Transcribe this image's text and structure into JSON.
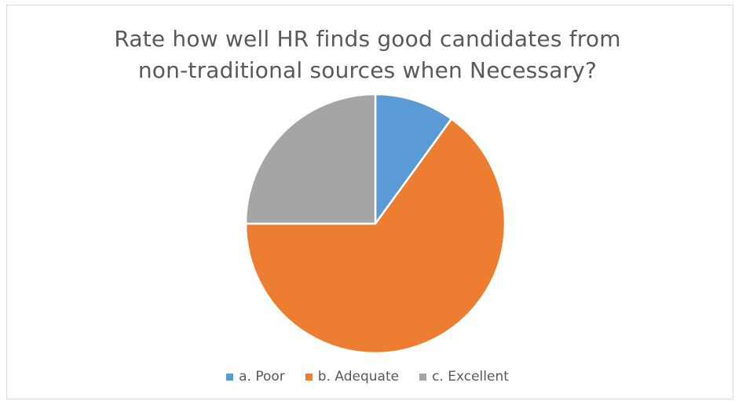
{
  "chart_data": {
    "type": "pie",
    "title_lines": [
      "Rate how well HR finds good candidates from",
      "non-traditional sources when Necessary?"
    ],
    "categories": [
      "a. Poor",
      "b. Adequate",
      "c. Excellent"
    ],
    "values": [
      10,
      65,
      25
    ],
    "colors": [
      "#5b9bd5",
      "#ed7d31",
      "#a5a5a5"
    ],
    "start_angle_deg": 0,
    "legend_position": "bottom"
  }
}
